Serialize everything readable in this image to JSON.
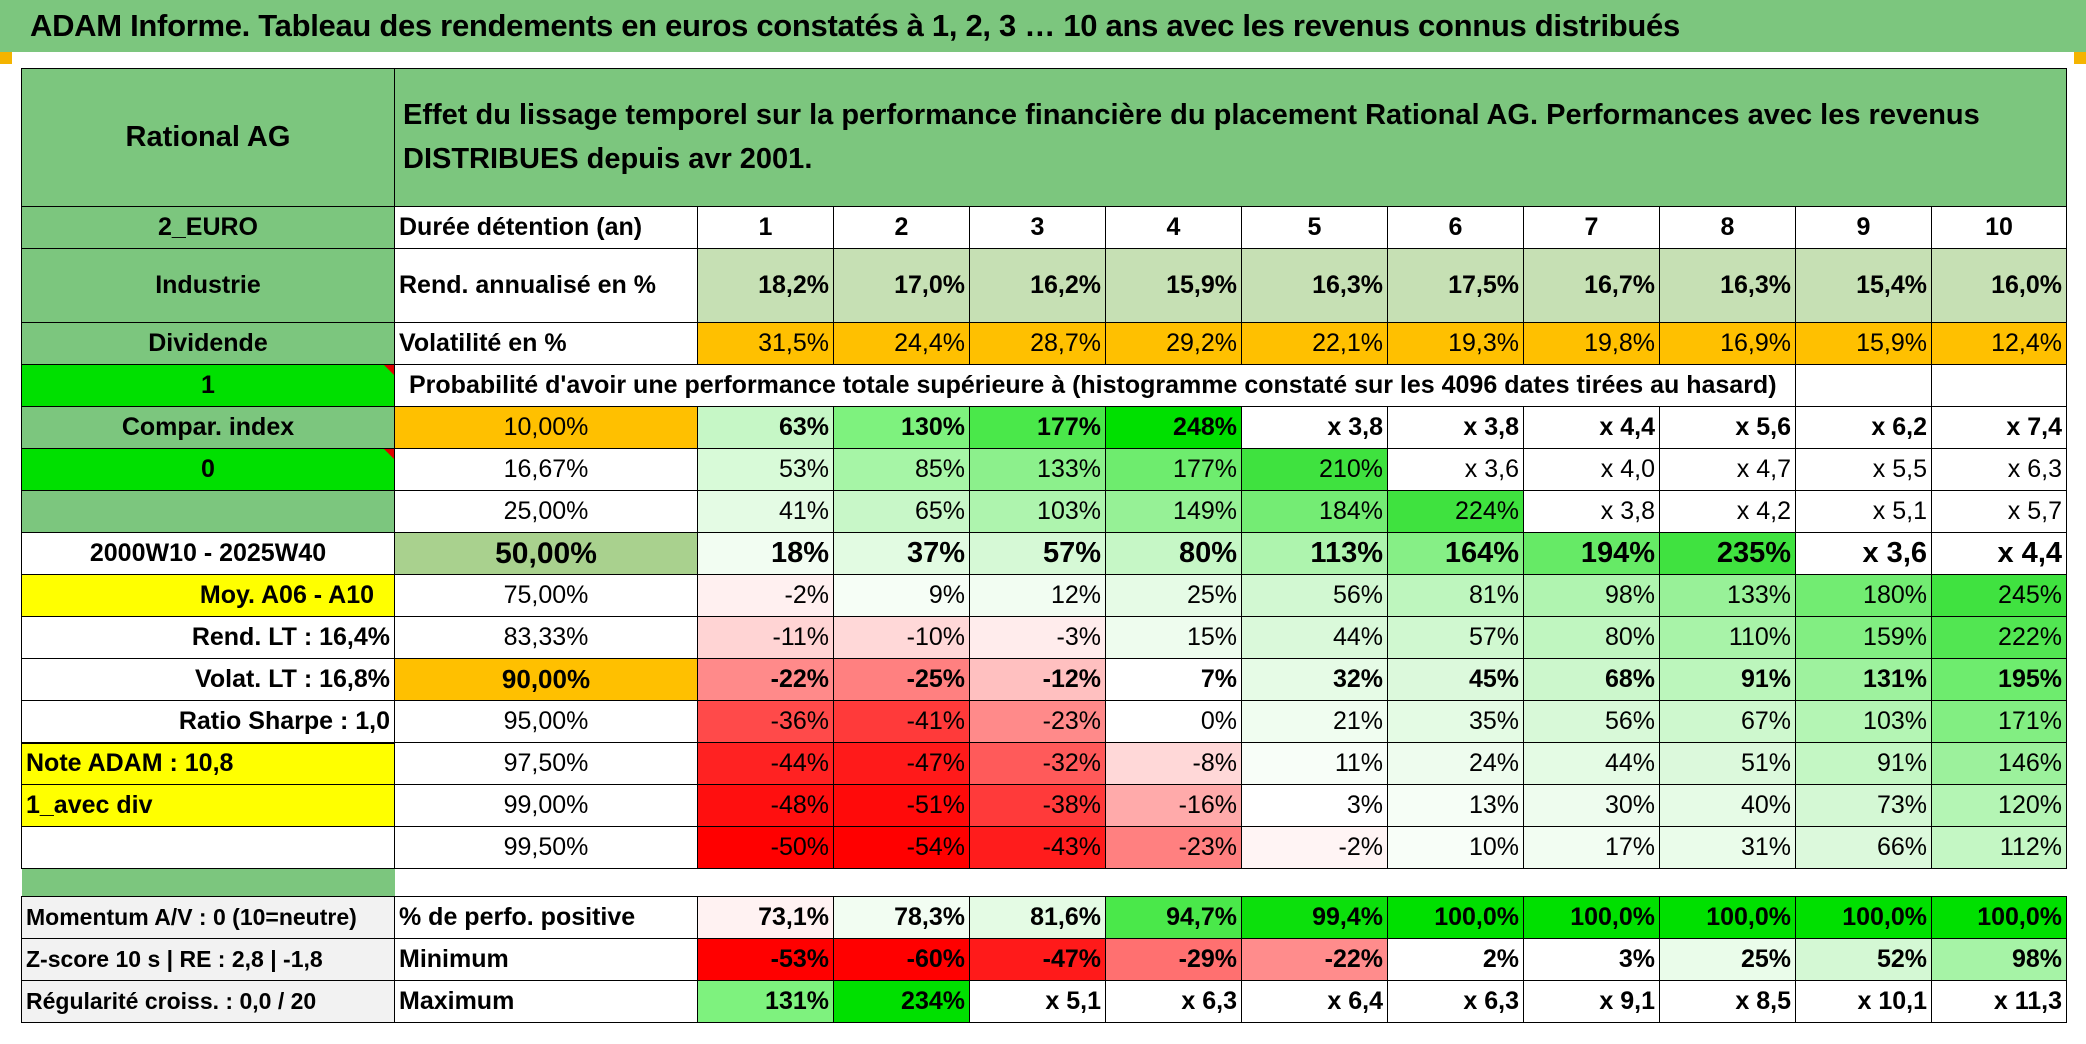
{
  "title": "ADAM Informe. Tableau des rendements en euros constatés à 1, 2, 3 … 10 ans avec les revenus connus distribués",
  "left": {
    "fund": "Rational AG",
    "currency": "2_EURO",
    "sector": "Industrie",
    "dividend": "Dividende",
    "one": "1",
    "compar": "Compar. index",
    "zero": "0",
    "period": "2000W10 - 2025W40",
    "moy": "Moy. A06 - A10",
    "rend_lt": "Rend. LT :   16,4%",
    "volat_lt": "Volat. LT :   16,8%",
    "sharpe": "Ratio Sharpe :    1,0",
    "note": "Note ADAM : 10,8",
    "avec_div": "1_avec div",
    "momentum": "Momentum A/V : 0 (10=neutre)",
    "zscore": "Z-score 10 s | RE : 2,8 | -1,8",
    "regularite": "Régularité croiss. : 0,0 / 20"
  },
  "header_text": "Effet du lissage temporel sur la performance financière du placement Rational AG. Performances avec les revenus DISTRIBUES depuis avr 2001.",
  "labels": {
    "duree": "Durée détention (an)",
    "rend": "Rend. annualisé en %",
    "volat": "Volatilité en %",
    "proba": "Probabilité d'avoir une performance totale supérieure à (histogramme constaté sur les 4096 dates tirées au hasard)",
    "positive": "% de perfo. positive",
    "minimum": "Minimum",
    "maximum": "Maximum"
  },
  "years": [
    "1",
    "2",
    "3",
    "4",
    "5",
    "6",
    "7",
    "8",
    "9",
    "10"
  ],
  "rend": [
    "18,2%",
    "17,0%",
    "16,2%",
    "15,9%",
    "16,3%",
    "17,5%",
    "16,7%",
    "16,3%",
    "15,4%",
    "16,0%"
  ],
  "volat": [
    "31,5%",
    "24,4%",
    "28,7%",
    "29,2%",
    "22,1%",
    "19,3%",
    "19,8%",
    "16,9%",
    "15,9%",
    "12,4%"
  ],
  "prob_rows": [
    {
      "p": "10,00%",
      "v": [
        "63%",
        "130%",
        "177%",
        "248%",
        "x 3,8",
        "x 3,8",
        "x 4,4",
        "x 5,6",
        "x 6,2",
        "x 7,4"
      ]
    },
    {
      "p": "16,67%",
      "v": [
        "53%",
        "85%",
        "133%",
        "177%",
        "210%",
        "x 3,6",
        "x 4,0",
        "x 4,7",
        "x 5,5",
        "x 6,3"
      ]
    },
    {
      "p": "25,00%",
      "v": [
        "41%",
        "65%",
        "103%",
        "149%",
        "184%",
        "224%",
        "x 3,8",
        "x 4,2",
        "x 5,1",
        "x 5,7"
      ]
    },
    {
      "p": "50,00%",
      "v": [
        "18%",
        "37%",
        "57%",
        "80%",
        "113%",
        "164%",
        "194%",
        "235%",
        "x 3,6",
        "x 4,4"
      ]
    },
    {
      "p": "75,00%",
      "v": [
        "-2%",
        "9%",
        "12%",
        "25%",
        "56%",
        "81%",
        "98%",
        "133%",
        "180%",
        "245%"
      ]
    },
    {
      "p": "83,33%",
      "v": [
        "-11%",
        "-10%",
        "-3%",
        "15%",
        "44%",
        "57%",
        "80%",
        "110%",
        "159%",
        "222%"
      ]
    },
    {
      "p": "90,00%",
      "v": [
        "-22%",
        "-25%",
        "-12%",
        "7%",
        "32%",
        "45%",
        "68%",
        "91%",
        "131%",
        "195%"
      ]
    },
    {
      "p": "95,00%",
      "v": [
        "-36%",
        "-41%",
        "-23%",
        "0%",
        "21%",
        "35%",
        "56%",
        "67%",
        "103%",
        "171%"
      ]
    },
    {
      "p": "97,50%",
      "v": [
        "-44%",
        "-47%",
        "-32%",
        "-8%",
        "11%",
        "24%",
        "44%",
        "51%",
        "91%",
        "146%"
      ]
    },
    {
      "p": "99,00%",
      "v": [
        "-48%",
        "-51%",
        "-38%",
        "-16%",
        "3%",
        "13%",
        "30%",
        "40%",
        "73%",
        "120%"
      ]
    },
    {
      "p": "99,50%",
      "v": [
        "-50%",
        "-54%",
        "-43%",
        "-23%",
        "-2%",
        "10%",
        "17%",
        "31%",
        "66%",
        "112%"
      ]
    }
  ],
  "positive": [
    "73,1%",
    "78,3%",
    "81,6%",
    "94,7%",
    "99,4%",
    "100,0%",
    "100,0%",
    "100,0%",
    "100,0%",
    "100,0%"
  ],
  "minimum": [
    "-53%",
    "-60%",
    "-47%",
    "-29%",
    "-22%",
    "2%",
    "3%",
    "25%",
    "52%",
    "98%"
  ],
  "maximum": [
    "131%",
    "234%",
    "x 5,1",
    "x 6,3",
    "x 6,4",
    "x 6,3",
    "x 9,1",
    "x 8,5",
    "x 10,1",
    "x 11,3"
  ],
  "colors": {
    "green_header": "#7cc67e",
    "orange": "#ffc000",
    "yellow": "#ffff00",
    "bright_green": "#00e000",
    "red": "#ff0000"
  }
}
